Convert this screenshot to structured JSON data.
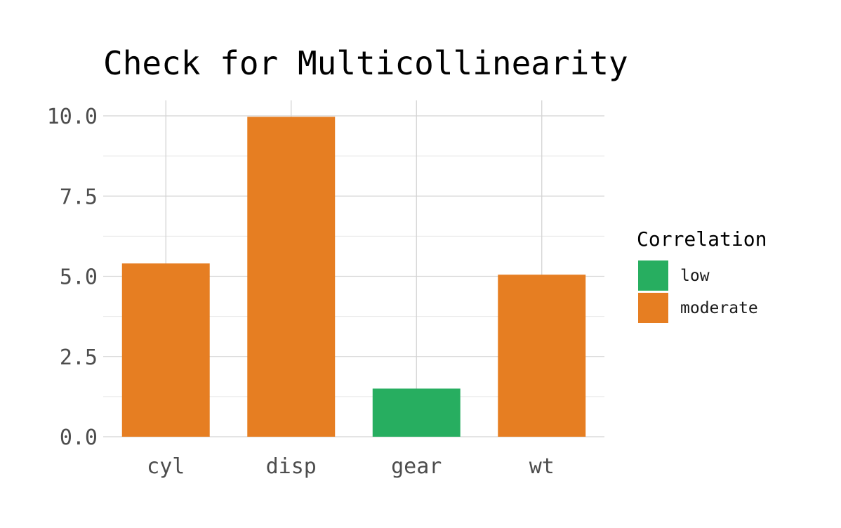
{
  "chart_data": {
    "type": "bar",
    "title": "Check for Multicollinearity",
    "xlabel": "",
    "ylabel": "",
    "categories": [
      "cyl",
      "disp",
      "gear",
      "wt"
    ],
    "values": [
      5.4,
      9.97,
      1.5,
      5.05
    ],
    "correlation": [
      "moderate",
      "moderate",
      "low",
      "moderate"
    ],
    "ylim": [
      0,
      10.5
    ],
    "yticks": [
      0,
      2.5,
      5,
      7.5,
      10
    ],
    "ytick_labels": [
      "0.0",
      "2.5",
      "5.0",
      "7.5",
      "10.0"
    ],
    "grid": true,
    "legend": {
      "title": "Correlation",
      "position": "right",
      "entries": [
        {
          "label": "low",
          "color": "#27ae60"
        },
        {
          "label": "moderate",
          "color": "#e67e22"
        }
      ]
    },
    "colors": {
      "low": "#27ae60",
      "moderate": "#e67e22"
    }
  }
}
